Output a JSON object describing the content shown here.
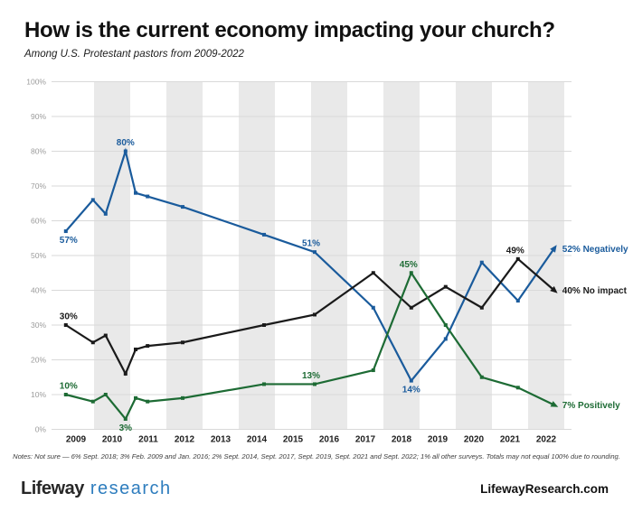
{
  "header": {
    "title": "How is the current economy impacting your church?",
    "subtitle": "Among U.S. Protestant pastors from 2009-2022"
  },
  "chart_data": {
    "type": "line",
    "title": "How is the current economy impacting your church?",
    "subtitle": "Among U.S. Protestant pastors from 2009-2022",
    "grid": true,
    "legend_position": "end-of-line-labels",
    "x_axis": {
      "tick_labels": [
        "2009",
        "2010",
        "2011",
        "2012",
        "2013",
        "2014",
        "2015",
        "2016",
        "2017",
        "2018",
        "2019",
        "2020",
        "2021",
        "2022"
      ]
    },
    "y_axis": {
      "tick_labels": [
        "0%",
        "10%",
        "20%",
        "30%",
        "40%",
        "50%",
        "60%",
        "70%",
        "80%",
        "90%",
        "100%"
      ],
      "min": 0,
      "max": 100,
      "step": 10
    },
    "style": {
      "band_color": "#e9e9e9",
      "grid_color": "#d9d9d9"
    },
    "survey_x": [
      2009.22,
      2009.97,
      2010.32,
      2010.87,
      2011.15,
      2011.48,
      2012.45,
      2014.7,
      2016.1,
      2017.72,
      2018.77,
      2019.72,
      2020.72,
      2021.72,
      2022.72
    ],
    "series": [
      {
        "name": "Negatively",
        "color": "#1a5b9c",
        "values": [
          57,
          66,
          62,
          80,
          68,
          67,
          64,
          56,
          51,
          35,
          14,
          26,
          48,
          37,
          52
        ],
        "point_labels": [
          {
            "index": 0,
            "text": "57%",
            "position": "below",
            "dx": 3
          },
          {
            "index": 3,
            "text": "80%",
            "position": "above",
            "dx": 0
          },
          {
            "index": 8,
            "text": "51%",
            "position": "above",
            "dx": -4
          },
          {
            "index": 10,
            "text": "14%",
            "position": "below",
            "dx": 0
          }
        ],
        "end_label": "52% Negatively"
      },
      {
        "name": "No impact",
        "color": "#1a1a1a",
        "values": [
          30,
          25,
          27,
          16,
          23,
          24,
          25,
          30,
          33,
          45,
          35,
          41,
          35,
          49,
          40
        ],
        "point_labels": [
          {
            "index": 0,
            "text": "30%",
            "position": "above",
            "dx": 3
          },
          {
            "index": 13,
            "text": "49%",
            "position": "above",
            "dx": -3
          }
        ],
        "end_label": "40% No impact"
      },
      {
        "name": "Positively",
        "color": "#1d6b34",
        "values": [
          10,
          8,
          10,
          3,
          9,
          8,
          9,
          13,
          13,
          17,
          45,
          30,
          15,
          12,
          7
        ],
        "point_labels": [
          {
            "index": 0,
            "text": "10%",
            "position": "above",
            "dx": 3
          },
          {
            "index": 3,
            "text": "3%",
            "position": "below",
            "dx": 0
          },
          {
            "index": 8,
            "text": "13%",
            "position": "above",
            "dx": -4
          },
          {
            "index": 10,
            "text": "45%",
            "position": "above",
            "dx": -3
          }
        ],
        "end_label": "7% Positively"
      }
    ]
  },
  "notes": "Notes: Not sure — 6% Sept. 2018; 3% Feb. 2009 and Jan. 2016; 2% Sept. 2014, Sept. 2017, Sept. 2019, Sept. 2021 and Sept. 2022; 1% all other surveys. Totals may not equal 100% due to rounding.",
  "footer": {
    "logo_primary": "Lifeway",
    "logo_secondary": "research",
    "website": "LifewayResearch.com"
  }
}
